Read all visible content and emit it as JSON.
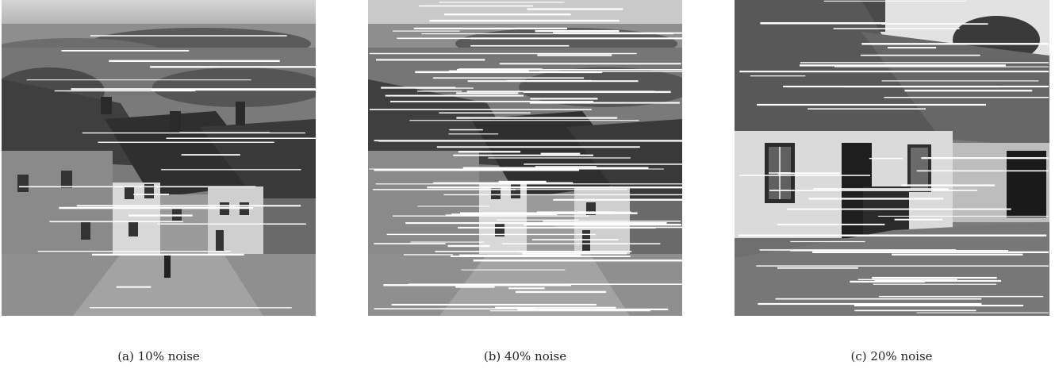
{
  "figure": {
    "panels": [
      {
        "id": "a",
        "caption": "(a) 10% noise",
        "noise_fraction": 0.1
      },
      {
        "id": "b",
        "caption": "(b) 40% noise",
        "noise_fraction": 0.4
      },
      {
        "id": "c",
        "caption": "(c) 20% noise",
        "noise_fraction": 0.2
      }
    ]
  }
}
